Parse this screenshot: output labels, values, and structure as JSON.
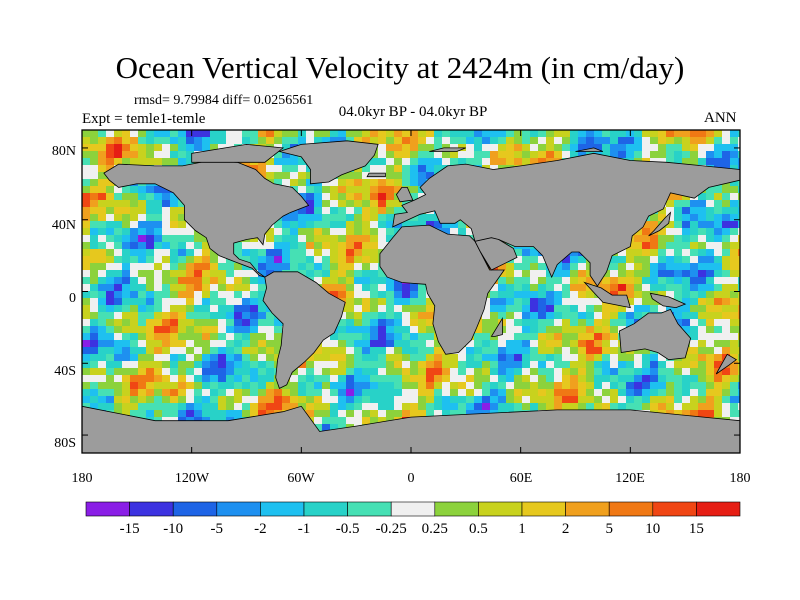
{
  "title": "Ocean Vertical Velocity at 2424m (in cm/day)",
  "stats": "rmsd= 9.79984 diff= 0.0256561",
  "experiment": "Expt = temle1-temle",
  "period": "04.0kyr BP - 04.0kyr BP",
  "season": "ANN",
  "map_style": {
    "land_color": "#9c9c9c",
    "frame_color": "#000000"
  },
  "lat_labels": [
    "80N",
    "40N",
    "0",
    "40S",
    "80S"
  ],
  "lon_labels": [
    "180",
    "120W",
    "60W",
    "0",
    "60E",
    "120E",
    "180"
  ],
  "colorbar": {
    "labels": [
      "-15",
      "-10",
      "-5",
      "-2",
      "-1",
      "-0.5",
      "-0.25",
      "0.25",
      "0.5",
      "1",
      "2",
      "5",
      "10",
      "15"
    ],
    "colors": [
      "#8a1ee6",
      "#3c32e0",
      "#1e64e6",
      "#1e90f0",
      "#1ec0f0",
      "#28d2c8",
      "#46e0b4",
      "#f0f0f0",
      "#8cd23c",
      "#c8d21e",
      "#e6c81e",
      "#f0a01e",
      "#f07814",
      "#f04614",
      "#e61e14"
    ]
  }
}
